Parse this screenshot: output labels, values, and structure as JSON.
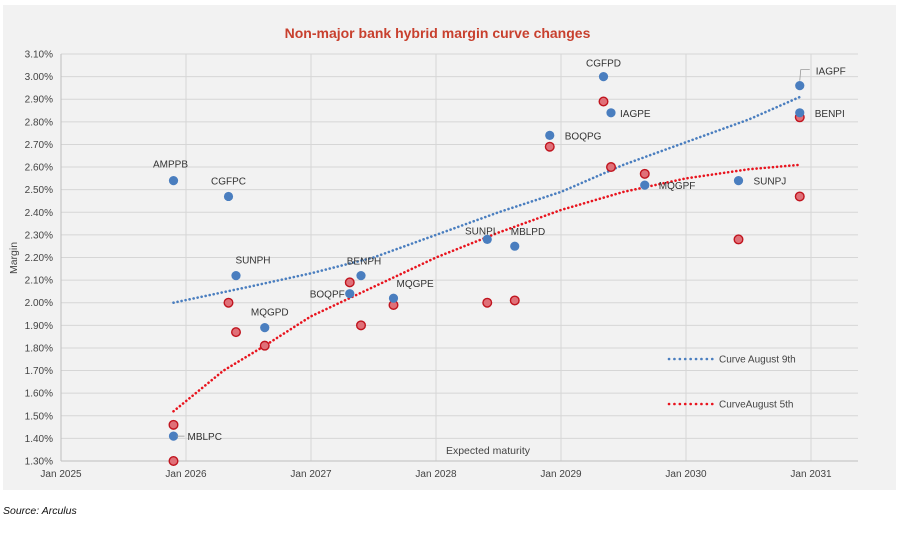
{
  "source": "Source: Arculus",
  "chart_data": {
    "type": "scatter",
    "title": "Non-major bank hybrid margin curve changes",
    "xlabel": "Expected maturity",
    "ylabel": "Margin",
    "xlim": [
      2025,
      2031.38
    ],
    "ylim": [
      1.3,
      3.1
    ],
    "x_ticks": [
      {
        "value": 2025,
        "label": "Jan 2025"
      },
      {
        "value": 2026,
        "label": "Jan 2026"
      },
      {
        "value": 2027,
        "label": "Jan 2027"
      },
      {
        "value": 2028,
        "label": "Jan 2028"
      },
      {
        "value": 2029,
        "label": "Jan 2029"
      },
      {
        "value": 2030,
        "label": "Jan 2030"
      },
      {
        "value": 2031,
        "label": "Jan 2031"
      }
    ],
    "y_ticks": [
      1.3,
      1.4,
      1.5,
      1.6,
      1.7,
      1.8,
      1.9,
      2.0,
      2.1,
      2.2,
      2.3,
      2.4,
      2.5,
      2.6,
      2.7,
      2.8,
      2.9,
      3.0,
      3.1
    ],
    "y_tick_format": "%",
    "grid": true,
    "legend_position": "bottom-right",
    "series": [
      {
        "name": "August 9th",
        "color": "#4a7ebf",
        "points": [
          {
            "label": "AMPPB",
            "x": 2025.9,
            "y": 2.54
          },
          {
            "label": "CGFPC",
            "x": 2026.34,
            "y": 2.47
          },
          {
            "label": "SUNPH",
            "x": 2026.4,
            "y": 2.12
          },
          {
            "label": "MQGPD",
            "x": 2026.63,
            "y": 1.89
          },
          {
            "label": "MBLPC",
            "x": 2025.9,
            "y": 1.41
          },
          {
            "label": "BENPH",
            "x": 2027.4,
            "y": 2.12
          },
          {
            "label": "BOQPF",
            "x": 2027.31,
            "y": 2.04
          },
          {
            "label": "MQGPE",
            "x": 2027.66,
            "y": 2.02
          },
          {
            "label": "SUNPI",
            "x": 2028.41,
            "y": 2.28
          },
          {
            "label": "MBLPD",
            "x": 2028.63,
            "y": 2.25
          },
          {
            "label": "BOQPG",
            "x": 2028.91,
            "y": 2.74
          },
          {
            "label": "CGFPD",
            "x": 2029.34,
            "y": 3.0
          },
          {
            "label": "IAGPE",
            "x": 2029.4,
            "y": 2.84
          },
          {
            "label": "MQGPF",
            "x": 2029.67,
            "y": 2.52
          },
          {
            "label": "SUNPJ",
            "x": 2030.42,
            "y": 2.54
          },
          {
            "label": "IAGPF",
            "x": 2030.91,
            "y": 2.96
          },
          {
            "label": "BENPI",
            "x": 2030.91,
            "y": 2.84
          }
        ]
      },
      {
        "name": "August 5th",
        "color": "#e07078",
        "stroke": "#c0141e",
        "points": [
          {
            "x": 2025.9,
            "y": 1.46
          },
          {
            "x": 2025.9,
            "y": 1.3
          },
          {
            "x": 2026.34,
            "y": 2.0
          },
          {
            "x": 2026.4,
            "y": 1.87
          },
          {
            "x": 2026.63,
            "y": 1.81
          },
          {
            "x": 2027.31,
            "y": 2.09
          },
          {
            "x": 2027.4,
            "y": 1.9
          },
          {
            "x": 2027.66,
            "y": 1.99
          },
          {
            "x": 2028.41,
            "y": 2.0
          },
          {
            "x": 2028.63,
            "y": 2.01
          },
          {
            "x": 2028.91,
            "y": 2.69
          },
          {
            "x": 2029.34,
            "y": 2.89
          },
          {
            "x": 2029.4,
            "y": 2.6
          },
          {
            "x": 2029.67,
            "y": 2.57
          },
          {
            "x": 2030.42,
            "y": 2.28
          },
          {
            "x": 2030.91,
            "y": 2.82
          },
          {
            "x": 2030.91,
            "y": 2.47
          }
        ]
      }
    ],
    "trendlines": [
      {
        "name": "Curve August 9th",
        "legend_label": "Curve August 9th",
        "color": "#4a7ebf",
        "type": "log",
        "points": [
          [
            2025.9,
            2.0
          ],
          [
            2026.5,
            2.07
          ],
          [
            2027,
            2.13
          ],
          [
            2027.5,
            2.2
          ],
          [
            2028,
            2.3
          ],
          [
            2028.5,
            2.4
          ],
          [
            2029,
            2.49
          ],
          [
            2029.5,
            2.61
          ],
          [
            2030,
            2.71
          ],
          [
            2030.5,
            2.81
          ],
          [
            2030.91,
            2.91
          ]
        ]
      },
      {
        "name": "CurveAugust 5th",
        "legend_label": "CurveAugust 5th",
        "color": "#e8141e",
        "type": "poly",
        "points": [
          [
            2025.9,
            1.52
          ],
          [
            2026.3,
            1.7
          ],
          [
            2026.63,
            1.81
          ],
          [
            2027,
            1.94
          ],
          [
            2027.5,
            2.07
          ],
          [
            2028,
            2.2
          ],
          [
            2028.5,
            2.31
          ],
          [
            2029,
            2.41
          ],
          [
            2029.5,
            2.49
          ],
          [
            2030,
            2.55
          ],
          [
            2030.5,
            2.59
          ],
          [
            2030.91,
            2.61
          ]
        ]
      }
    ]
  }
}
